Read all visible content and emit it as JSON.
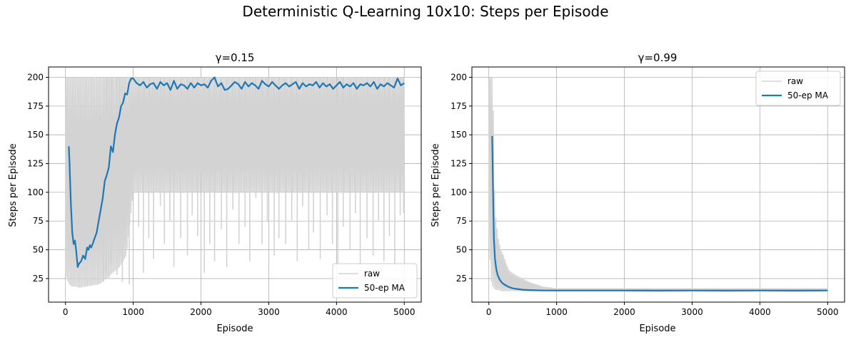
{
  "figure": {
    "suptitle": "Deterministic Q-Learning 10x10: Steps per Episode"
  },
  "colors": {
    "raw": "#d3d3d3",
    "ma": "#1f77b4",
    "grid": "#b0b0b0",
    "axis": "#000000",
    "legend_border": "#cccccc"
  },
  "chart_data": [
    {
      "type": "line",
      "title": "γ=0.15",
      "xlabel": "Episode",
      "ylabel": "Steps per Episode",
      "xlim": [
        -250,
        5250
      ],
      "ylim": [
        4.5,
        209
      ],
      "xticks": [
        0,
        1000,
        2000,
        3000,
        4000,
        5000
      ],
      "xtick_labels": [
        "0",
        "1000",
        "2000",
        "3000",
        "4000",
        "5000"
      ],
      "yticks": [
        25,
        50,
        75,
        100,
        125,
        150,
        175,
        200
      ],
      "ytick_labels": [
        "25",
        "50",
        "75",
        "100",
        "125",
        "150",
        "175",
        "200"
      ],
      "grid": true,
      "legend": {
        "placement": "lower-right",
        "entries": [
          "raw",
          "50-ep MA"
        ]
      },
      "series": [
        {
          "name": "raw",
          "color": "#d3d3d3",
          "band": {
            "x": [
              0,
              50,
              100,
              150,
              200,
              300,
              400,
              500,
              600,
              700,
              800,
              900,
              1000,
              2000,
              3000,
              4000,
              5000
            ],
            "low": [
              30,
              20,
              18,
              18,
              17,
              18,
              19,
              20,
              25,
              30,
              35,
              45,
              100,
              100,
              100,
              100,
              100
            ],
            "high": [
              200,
              200,
              200,
              200,
              200,
              200,
              200,
              200,
              200,
              200,
              200,
              200,
              200,
              200,
              200,
              200,
              200
            ]
          },
          "dips": [
            {
              "x": 560,
              "y": 22
            },
            {
              "x": 600,
              "y": 30
            },
            {
              "x": 640,
              "y": 25
            },
            {
              "x": 680,
              "y": 38
            },
            {
              "x": 760,
              "y": 28
            },
            {
              "x": 800,
              "y": 45
            },
            {
              "x": 840,
              "y": 22
            },
            {
              "x": 880,
              "y": 55
            },
            {
              "x": 940,
              "y": 20
            },
            {
              "x": 1080,
              "y": 70
            },
            {
              "x": 1150,
              "y": 30
            },
            {
              "x": 1230,
              "y": 60
            },
            {
              "x": 1300,
              "y": 42
            },
            {
              "x": 1400,
              "y": 88
            },
            {
              "x": 1460,
              "y": 55
            },
            {
              "x": 1540,
              "y": 75
            },
            {
              "x": 1600,
              "y": 35
            },
            {
              "x": 1700,
              "y": 60
            },
            {
              "x": 1800,
              "y": 45
            },
            {
              "x": 1870,
              "y": 80
            },
            {
              "x": 1950,
              "y": 62
            },
            {
              "x": 2050,
              "y": 30
            },
            {
              "x": 2130,
              "y": 55
            },
            {
              "x": 2200,
              "y": 40
            },
            {
              "x": 2300,
              "y": 68
            },
            {
              "x": 2380,
              "y": 35
            },
            {
              "x": 2470,
              "y": 85
            },
            {
              "x": 2560,
              "y": 55
            },
            {
              "x": 2650,
              "y": 70
            },
            {
              "x": 2720,
              "y": 40
            },
            {
              "x": 2810,
              "y": 95
            },
            {
              "x": 2900,
              "y": 55
            },
            {
              "x": 2980,
              "y": 75
            },
            {
              "x": 3080,
              "y": 45
            },
            {
              "x": 3150,
              "y": 60
            },
            {
              "x": 3250,
              "y": 55
            },
            {
              "x": 3340,
              "y": 75
            },
            {
              "x": 3420,
              "y": 40
            },
            {
              "x": 3500,
              "y": 88
            },
            {
              "x": 3590,
              "y": 50
            },
            {
              "x": 3660,
              "y": 65
            },
            {
              "x": 3760,
              "y": 42
            },
            {
              "x": 3860,
              "y": 80
            },
            {
              "x": 3940,
              "y": 55
            },
            {
              "x": 4020,
              "y": 38
            },
            {
              "x": 4100,
              "y": 70
            },
            {
              "x": 4200,
              "y": 50
            },
            {
              "x": 4280,
              "y": 82
            },
            {
              "x": 4350,
              "y": 35
            },
            {
              "x": 4450,
              "y": 60
            },
            {
              "x": 4540,
              "y": 45
            },
            {
              "x": 4620,
              "y": 75
            },
            {
              "x": 4700,
              "y": 40
            },
            {
              "x": 4780,
              "y": 62
            },
            {
              "x": 4860,
              "y": 35
            },
            {
              "x": 4940,
              "y": 80
            },
            {
              "x": 4990,
              "y": 82
            }
          ]
        },
        {
          "name": "50-ep MA",
          "color": "#1f77b4",
          "x": [
            49,
            60,
            80,
            100,
            120,
            140,
            160,
            180,
            200,
            230,
            260,
            290,
            320,
            340,
            360,
            380,
            400,
            430,
            460,
            490,
            520,
            550,
            580,
            610,
            640,
            670,
            700,
            730,
            760,
            790,
            820,
            850,
            880,
            910,
            940,
            970,
            1000,
            1050,
            1100,
            1150,
            1200,
            1250,
            1300,
            1350,
            1400,
            1450,
            1500,
            1550,
            1600,
            1650,
            1700,
            1750,
            1800,
            1850,
            1900,
            1950,
            2000,
            2050,
            2100,
            2150,
            2200,
            2250,
            2300,
            2350,
            2400,
            2450,
            2500,
            2550,
            2600,
            2650,
            2700,
            2750,
            2800,
            2850,
            2900,
            2950,
            3000,
            3050,
            3100,
            3150,
            3200,
            3250,
            3300,
            3350,
            3400,
            3450,
            3500,
            3550,
            3600,
            3650,
            3700,
            3750,
            3800,
            3850,
            3900,
            3950,
            4000,
            4050,
            4100,
            4150,
            4200,
            4250,
            4300,
            4350,
            4400,
            4450,
            4500,
            4550,
            4600,
            4650,
            4700,
            4750,
            4800,
            4850,
            4900,
            4950,
            4999
          ],
          "values": [
            140,
            125,
            90,
            65,
            55,
            58,
            48,
            35,
            38,
            40,
            45,
            42,
            52,
            50,
            54,
            52,
            55,
            60,
            65,
            75,
            85,
            95,
            110,
            115,
            122,
            140,
            135,
            150,
            160,
            165,
            175,
            178,
            186,
            185,
            195,
            199,
            199,
            195,
            193,
            196,
            191,
            194,
            195,
            190,
            196,
            193,
            195,
            189,
            197,
            190,
            194,
            193,
            190,
            195,
            191,
            195,
            193,
            194,
            191,
            197,
            200,
            192,
            195,
            189,
            190,
            193,
            196,
            194,
            190,
            196,
            192,
            195,
            193,
            190,
            197,
            194,
            192,
            196,
            193,
            190,
            193,
            195,
            192,
            194,
            196,
            190,
            195,
            192,
            194,
            193,
            196,
            191,
            195,
            192,
            194,
            190,
            193,
            196,
            191,
            194,
            192,
            195,
            190,
            194,
            193,
            195,
            192,
            196,
            190,
            194,
            192,
            195,
            193,
            191,
            199,
            193,
            195
          ]
        }
      ]
    },
    {
      "type": "line",
      "title": "γ=0.99",
      "xlabel": "Episode",
      "ylabel": "Steps per Episode",
      "xlim": [
        -250,
        5250
      ],
      "ylim": [
        4.5,
        209
      ],
      "xticks": [
        0,
        1000,
        2000,
        3000,
        4000,
        5000
      ],
      "xtick_labels": [
        "0",
        "1000",
        "2000",
        "3000",
        "4000",
        "5000"
      ],
      "yticks": [
        25,
        50,
        75,
        100,
        125,
        150,
        175,
        200
      ],
      "ytick_labels": [
        "25",
        "50",
        "75",
        "100",
        "125",
        "150",
        "175",
        "200"
      ],
      "grid": true,
      "legend": {
        "placement": "upper-right",
        "entries": [
          "raw",
          "50-ep MA"
        ]
      },
      "series": [
        {
          "name": "raw",
          "color": "#d3d3d3",
          "band": {
            "x": [
              0,
              20,
              40,
              60,
              80,
              100,
              140,
              180,
              220,
              260,
              300,
              400,
              500,
              600,
              800,
              1000,
              2000,
              3000,
              4000,
              5000
            ],
            "low": [
              60,
              40,
              20,
              18,
              16,
              15,
              15,
              14,
              14,
              14,
              14,
              14,
              14,
              14,
              14,
              14,
              14,
              14,
              14,
              14
            ],
            "high": [
              200,
              200,
              200,
              200,
              110,
              80,
              60,
              50,
              45,
              38,
              32,
              28,
              25,
              22,
              18,
              16.5,
              16.5,
              16.5,
              16.5,
              16.5
            ]
          },
          "dips": []
        },
        {
          "name": "50-ep MA",
          "color": "#1f77b4",
          "x": [
            49,
            55,
            65,
            75,
            90,
            110,
            130,
            160,
            200,
            250,
            300,
            350,
            400,
            500,
            600,
            700,
            800,
            1000,
            1500,
            2000,
            2500,
            3000,
            3500,
            4000,
            4500,
            5000
          ],
          "values": [
            149,
            130,
            90,
            60,
            42,
            33,
            28,
            24,
            21,
            19,
            17.5,
            16.5,
            16,
            15.3,
            15,
            14.8,
            14.6,
            14.6,
            14.6,
            14.6,
            14.5,
            14.6,
            14.5,
            14.6,
            14.5,
            14.6
          ]
        }
      ]
    }
  ]
}
